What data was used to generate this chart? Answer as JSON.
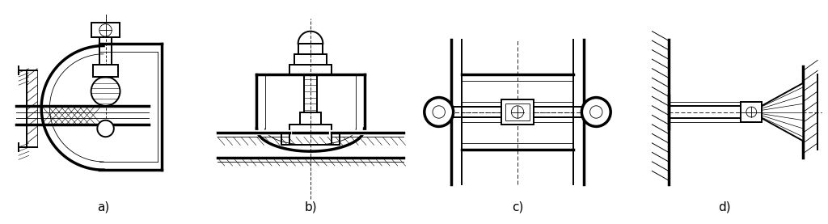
{
  "background": "#ffffff",
  "lc": "#000000",
  "thin": 0.6,
  "med": 1.4,
  "thk": 2.5,
  "labels": [
    "a)",
    "b)",
    "c)",
    "d)"
  ],
  "label_fontsize": 11,
  "fig_width": 10.24,
  "fig_height": 2.77,
  "dpi": 100
}
